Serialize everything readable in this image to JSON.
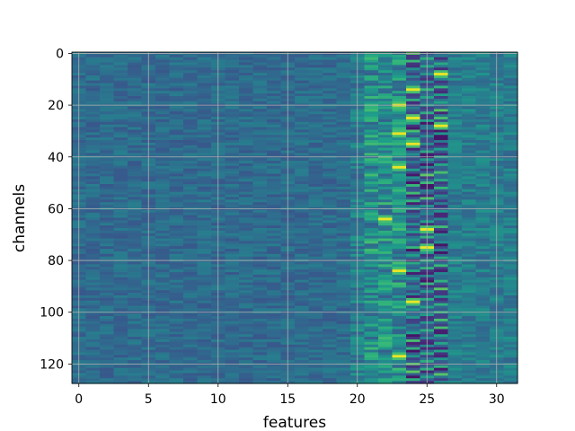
{
  "chart_data": {
    "type": "heatmap",
    "title": "",
    "xlabel": "features",
    "ylabel": "channels",
    "x_range": [
      -0.5,
      31.5
    ],
    "y_range": [
      127.5,
      -0.5
    ],
    "y_inverted": true,
    "n_features": 32,
    "n_channels": 128,
    "colormap": "viridis",
    "grid": true,
    "grid_color": "#b0b0b0",
    "x_ticks": [
      0,
      5,
      10,
      15,
      20,
      25,
      30
    ],
    "y_ticks": [
      0,
      20,
      40,
      60,
      80,
      100,
      120
    ],
    "pattern_summary": {
      "features_0_to_19": "low, slightly noisy values (blue-teal)",
      "features_21_to_26": "high-contrast band: bright yellow peaks near features 23-25 alternating with dark purple near features 24-26",
      "features_27_to_31": "moderate teal values"
    },
    "bright_peaks": [
      {
        "feature": 26,
        "channel": 8
      },
      {
        "feature": 24,
        "channel": 14
      },
      {
        "feature": 23,
        "channel": 20
      },
      {
        "feature": 24,
        "channel": 25
      },
      {
        "feature": 26,
        "channel": 28
      },
      {
        "feature": 23,
        "channel": 31
      },
      {
        "feature": 24,
        "channel": 35
      },
      {
        "feature": 23,
        "channel": 44
      },
      {
        "feature": 22,
        "channel": 64
      },
      {
        "feature": 25,
        "channel": 68
      },
      {
        "feature": 25,
        "channel": 75
      },
      {
        "feature": 23,
        "channel": 84
      },
      {
        "feature": 24,
        "channel": 96
      },
      {
        "feature": 23,
        "channel": 117
      }
    ]
  }
}
